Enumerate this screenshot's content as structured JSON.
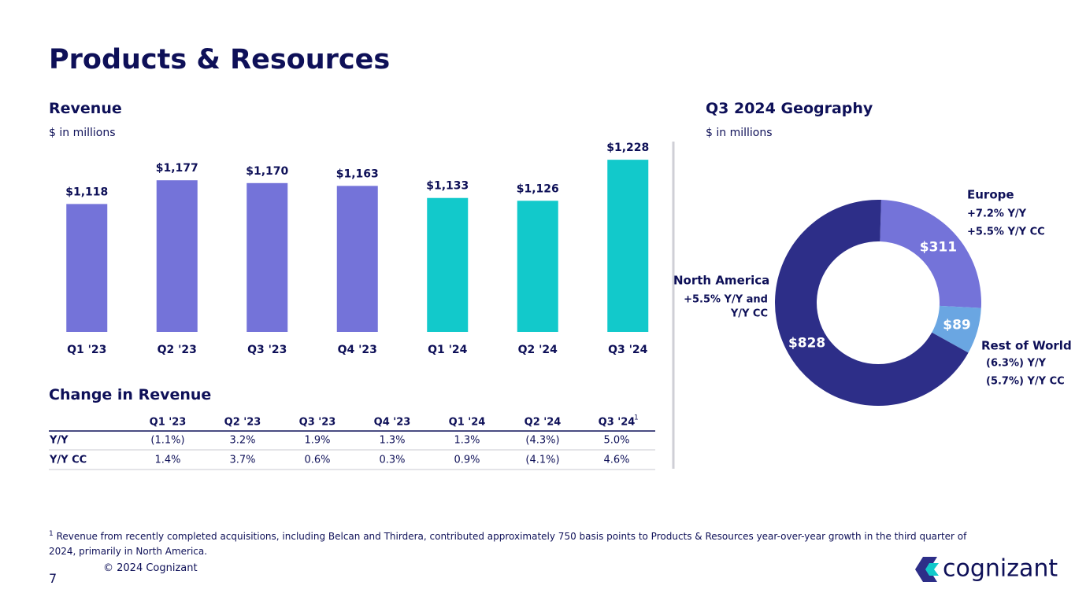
{
  "title": "Products & Resources",
  "chart_data": [
    {
      "type": "bar",
      "title": "Revenue",
      "subtitle": "$ in millions",
      "categories": [
        "Q1 '23",
        "Q2 '23",
        "Q3 '23",
        "Q4 '23",
        "Q1 '24",
        "Q2 '24",
        "Q3 '24"
      ],
      "values": [
        1118,
        1177,
        1170,
        1163,
        1133,
        1126,
        1228
      ],
      "value_labels": [
        "$1,118",
        "$1,177",
        "$1,170",
        "$1,163",
        "$1,133",
        "$1,126",
        "$1,228"
      ],
      "colors": [
        "#7473d9",
        "#7473d9",
        "#7473d9",
        "#7473d9",
        "#12c9cb",
        "#12c9cb",
        "#12c9cb"
      ],
      "ylim": [
        800,
        1240
      ]
    },
    {
      "type": "donut",
      "title": "Q3 2024 Geography",
      "subtitle": "$ in millions",
      "categories": [
        "Europe",
        "Rest of World",
        "North America"
      ],
      "values": [
        311,
        89,
        828
      ],
      "value_labels": [
        "$311",
        "$89",
        "$828"
      ],
      "colors": [
        "#7473d9",
        "#6aa6e2",
        "#2d2e88"
      ],
      "notes": [
        [
          "+7.2%  Y/Y",
          "+5.5%  Y/Y CC"
        ],
        [
          "(6.3%) Y/Y",
          "(5.7%) Y/Y CC"
        ],
        [
          "+5.5%  Y/Y and",
          "Y/Y CC"
        ]
      ]
    }
  ],
  "table": {
    "title": "Change in Revenue",
    "columns": [
      "Q1 '23",
      "Q2 '23",
      "Q3 '23",
      "Q4 '23",
      "Q1 '24",
      "Q2 '24",
      "Q3 '24"
    ],
    "column_marker": "1",
    "rows": [
      [
        "Y/Y",
        "(1.1%)",
        "3.2%",
        "1.9%",
        "1.3%",
        "1.3%",
        "(4.3%)",
        "5.0%"
      ],
      [
        "Y/Y CC",
        "1.4%",
        "3.7%",
        "0.6%",
        "0.3%",
        "0.9%",
        "(4.1%)",
        "4.6%"
      ]
    ]
  },
  "footnote": {
    "marker": "1",
    "text": "Revenue from recently completed acquisitions, including Belcan and Thirdera, contributed approximately 750 basis points to Products & Resources year-over-year growth in the third quarter of 2024, primarily in North America."
  },
  "copyright": "© 2024 Cognizant",
  "page_number": "7",
  "logo": "cognizant"
}
